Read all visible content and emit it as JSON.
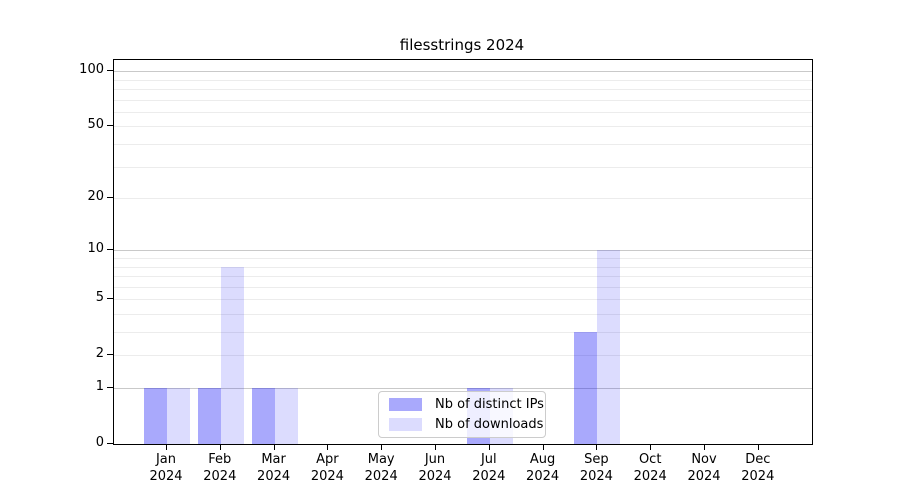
{
  "title": "filesstrings 2024",
  "colors": {
    "ips_bar": "rgba(10,10,245,0.35)",
    "downloads_bar": "rgba(10,10,245,0.14)",
    "grid_major": "#c9c9c9",
    "grid_minor": "#ececec",
    "spine": "#000000",
    "legend_border": "#cccccc"
  },
  "legend": {
    "items": [
      {
        "label": "Nb of distinct IPs",
        "color_key": "ips_bar"
      },
      {
        "label": "Nb of downloads",
        "color_key": "downloads_bar"
      }
    ]
  },
  "chart_data": {
    "type": "bar",
    "title": "filesstrings 2024",
    "xlabel": "",
    "ylabel": "",
    "yscale": "log1p",
    "ylim": [
      0,
      115
    ],
    "grid": "both",
    "legend_position": "lower center",
    "categories": [
      "Jan 2024",
      "Feb 2024",
      "Mar 2024",
      "Apr 2024",
      "May 2024",
      "Jun 2024",
      "Jul 2024",
      "Aug 2024",
      "Sep 2024",
      "Oct 2024",
      "Nov 2024",
      "Dec 2024"
    ],
    "series": [
      {
        "name": "Nb of distinct IPs",
        "values": [
          1,
          1,
          1,
          0,
          0,
          0,
          1,
          0,
          3,
          0,
          0,
          0
        ]
      },
      {
        "name": "Nb of downloads",
        "values": [
          1,
          8,
          1,
          0,
          0,
          0,
          1,
          0,
          10,
          0,
          0,
          0
        ]
      }
    ],
    "ytick_labels": [
      "100",
      "50",
      "20",
      "10",
      "5",
      "2",
      "1",
      "0"
    ],
    "ytick_values": [
      100,
      50,
      20,
      10,
      5,
      2,
      1,
      0
    ]
  }
}
